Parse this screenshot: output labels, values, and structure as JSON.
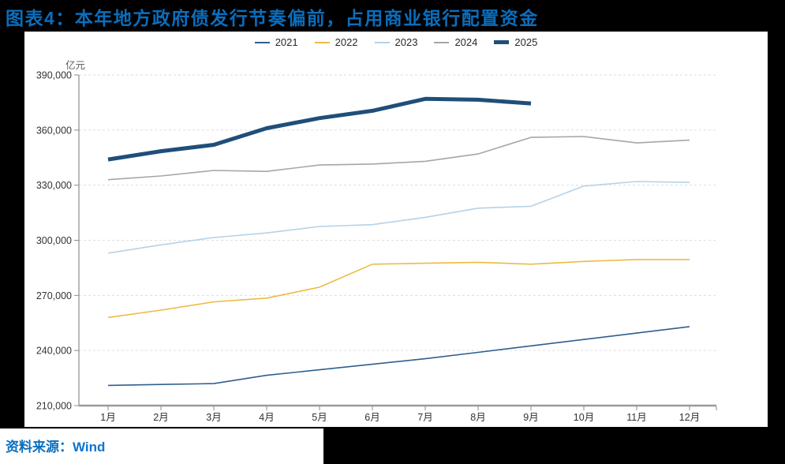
{
  "title": "图表4：本年地方政府债发行节奏偏前，占用商业银行配置资金",
  "source": {
    "label": "资料来源：",
    "name": "Wind"
  },
  "colors": {
    "background": "#000000",
    "panel": "#ffffff",
    "title_text": "#0a6ebd",
    "source_text": "#0a6ebd",
    "axis": "#9b9b9b",
    "spine": "#8c8c8c",
    "grid": "#dedede",
    "tick_label": "#333333",
    "legend_label": "#262626"
  },
  "chart_data": {
    "type": "line",
    "title": "图表4：本年地方政府债发行节奏偏前，占用商业银行配置资金",
    "unit_label": "亿元",
    "xlabel": "",
    "ylabel": "亿元",
    "ylim": [
      210000,
      390000
    ],
    "grid": "horizontal-dashed",
    "legend_position": "top-center",
    "categories": [
      "1月",
      "2月",
      "3月",
      "4月",
      "5月",
      "6月",
      "7月",
      "8月",
      "9月",
      "10月",
      "11月",
      "12月"
    ],
    "y_ticks": [
      {
        "value": 210000,
        "label": "210,000"
      },
      {
        "value": 240000,
        "label": "240,000"
      },
      {
        "value": 270000,
        "label": "270,000"
      },
      {
        "value": 300000,
        "label": "300,000"
      },
      {
        "value": 330000,
        "label": "330,000"
      },
      {
        "value": 360000,
        "label": "360,000"
      },
      {
        "value": 390000,
        "label": "390,000"
      }
    ],
    "series": [
      {
        "name": "2021",
        "color": "#2f5f8f",
        "stroke_width": 1.6,
        "values": [
          221000,
          221500,
          222000,
          226500,
          229500,
          232500,
          235500,
          239000,
          242500,
          246000,
          249500,
          253000
        ]
      },
      {
        "name": "2022",
        "color": "#ecbb42",
        "stroke_width": 1.6,
        "values": [
          258000,
          262000,
          266500,
          268500,
          274500,
          287000,
          287500,
          288000,
          287000,
          288500,
          289500,
          289500
        ]
      },
      {
        "name": "2023",
        "color": "#b5d2e8",
        "stroke_width": 1.6,
        "values": [
          293000,
          297500,
          301500,
          304000,
          307500,
          308500,
          312500,
          317500,
          318500,
          329500,
          332000,
          331500
        ]
      },
      {
        "name": "2024",
        "color": "#a6a6a6",
        "stroke_width": 1.6,
        "values": [
          333000,
          335000,
          338000,
          337500,
          341000,
          341500,
          343000,
          347000,
          356000,
          356500,
          353000,
          354500
        ]
      },
      {
        "name": "2025",
        "color": "#1f4e79",
        "stroke_width": 5,
        "values": [
          344000,
          348500,
          352000,
          361000,
          366500,
          370500,
          377000,
          376500,
          374500
        ]
      }
    ]
  }
}
